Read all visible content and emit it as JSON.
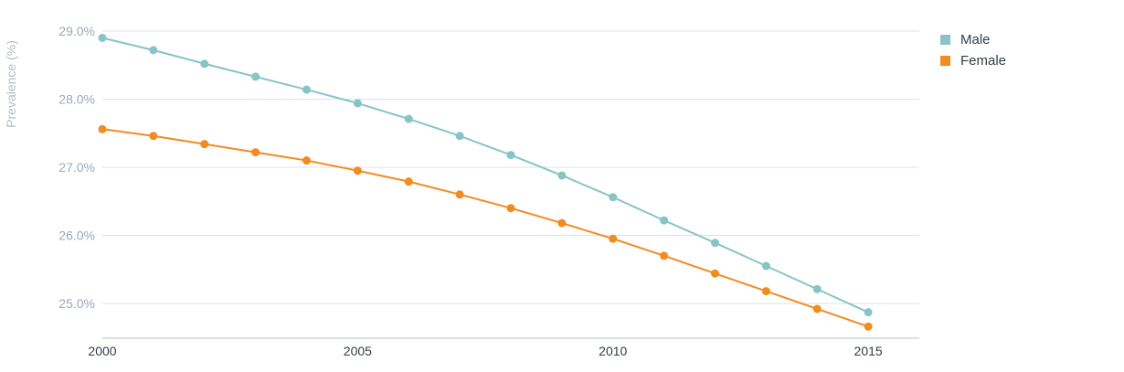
{
  "chart_data": {
    "type": "line",
    "title": "",
    "xlabel": "",
    "ylabel": "Prevalence (%)",
    "x": [
      2000,
      2001,
      2002,
      2003,
      2004,
      2005,
      2006,
      2007,
      2008,
      2009,
      2010,
      2011,
      2012,
      2013,
      2014,
      2015
    ],
    "xlim": [
      2000,
      2016
    ],
    "ylim": [
      24.5,
      29.0
    ],
    "y_ticks": [
      25.0,
      26.0,
      27.0,
      28.0,
      29.0
    ],
    "y_tick_labels": [
      "25.0%",
      "26.0%",
      "27.0%",
      "28.0%",
      "29.0%"
    ],
    "x_ticks": [
      2000,
      2005,
      2010,
      2015
    ],
    "x_tick_labels": [
      "2000",
      "2005",
      "2010",
      "2015"
    ],
    "grid": true,
    "legend_position": "top-right",
    "series": [
      {
        "name": "Male",
        "color": "#86c5c4",
        "values": [
          28.9,
          28.72,
          28.52,
          28.33,
          28.14,
          27.94,
          27.71,
          27.46,
          27.18,
          26.88,
          26.56,
          26.22,
          25.89,
          25.55,
          25.21,
          24.87
        ]
      },
      {
        "name": "Female",
        "color": "#f28b20",
        "values": [
          27.56,
          27.46,
          27.34,
          27.22,
          27.1,
          26.95,
          26.79,
          26.6,
          26.4,
          26.18,
          25.95,
          25.7,
          25.44,
          25.18,
          24.92,
          24.66
        ]
      }
    ]
  }
}
